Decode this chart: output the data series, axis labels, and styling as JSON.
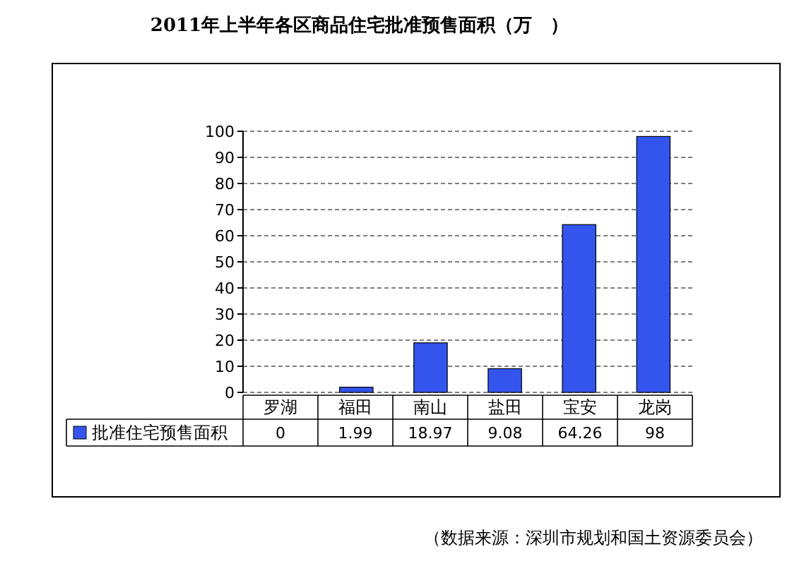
{
  "chart_data": {
    "type": "bar",
    "title": "2011年上半年各区商品住宅批准预售面积（万　）",
    "categories": [
      "罗湖",
      "福田",
      "南山",
      "盐田",
      "宝安",
      "龙岗"
    ],
    "series": [
      {
        "name": "批准住宅预售面积",
        "color": "#3355ee",
        "values": [
          0,
          1.99,
          18.97,
          9.08,
          64.26,
          98
        ]
      }
    ],
    "ylim": [
      0,
      100
    ],
    "yticks": [
      0,
      10,
      20,
      30,
      40,
      50,
      60,
      70,
      80,
      90,
      100
    ],
    "grid": "y",
    "data_labels": true,
    "legend": "left",
    "annotations": [
      "（数据来源：深圳市规划和国土资源委员会）"
    ]
  }
}
